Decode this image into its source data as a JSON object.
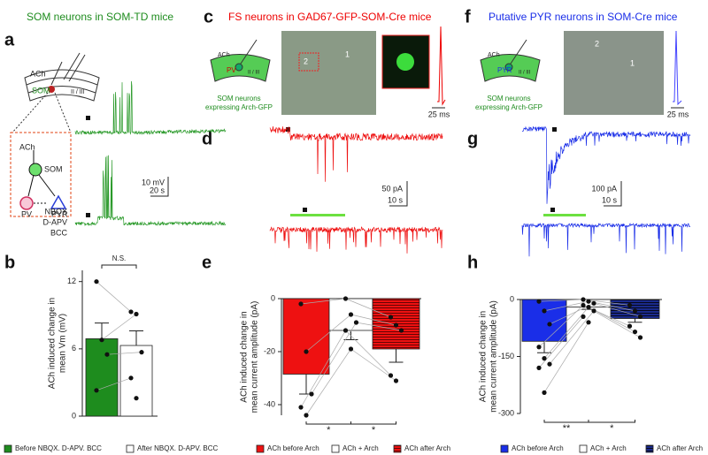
{
  "figure": {
    "panels": [
      "a",
      "b",
      "c",
      "d",
      "e",
      "f",
      "g",
      "h"
    ],
    "titles": {
      "a": "SOM neurons in SOM-TD mice",
      "c": "FS neurons in GAD67-GFP-SOM-Cre mice",
      "f": "Putative PYR neurons in SOM-Cre mice"
    },
    "schematic_a": {
      "ach": "ACh",
      "som": "SOM",
      "layer": "II / III",
      "ach2": "ACh",
      "som2": "SOM",
      "pv": "PV",
      "pyr": "PYR",
      "drugs": [
        "NBQX",
        "D-APV",
        "BCC"
      ]
    },
    "schematic_c": {
      "ach": "ACh",
      "pv": "PV",
      "layer": "II / III",
      "caption": [
        "SOM neurons",
        "expressing Arch-GFP"
      ],
      "cells": [
        "2",
        "1"
      ]
    },
    "schematic_f": {
      "ach": "ACh",
      "pyr": "PYR",
      "layer": "II / III",
      "caption": [
        "SOM neurons",
        "expressing Arch-GFP"
      ],
      "cells": [
        "2",
        "1"
      ]
    },
    "scale_bars": {
      "a": [
        "10 mV",
        "20 s"
      ],
      "c": "25 ms",
      "f": "25 ms",
      "d": [
        "50 pA",
        "10 s"
      ],
      "g": [
        "100 pA",
        "10 s"
      ]
    }
  },
  "chart_data": [
    {
      "type": "bar",
      "ylabel": [
        "ACh induced change  in",
        "mean Vm (mV)"
      ],
      "ylim": [
        0,
        13
      ],
      "yticks": [
        0,
        6,
        12
      ],
      "annotations": [
        "N.S."
      ],
      "series": [
        {
          "name": "Before NBQX. D-APV. BCC",
          "color": "#1e8c1e",
          "values": [
            6.9
          ],
          "errors": [
            1.4
          ],
          "points": [
            12,
            6.8,
            5.5,
            2.3
          ]
        },
        {
          "name": "After NBQX. D-APV. BCC",
          "color": "#ffffff",
          "values": [
            6.3
          ],
          "errors": [
            1.3
          ],
          "points": [
            9.3,
            9.1,
            5.7,
            3.4,
            1.6
          ]
        }
      ]
    },
    {
      "type": "bar",
      "ylabel": [
        "ACh induced change in",
        "mean current amplitude (pA)"
      ],
      "ylim": [
        -44,
        0
      ],
      "yticks": [
        0,
        -20,
        -40
      ],
      "annotations": [
        "*",
        "*"
      ],
      "series": [
        {
          "name": "ACh before Arch",
          "color": "#ee1111",
          "values": [
            -28.5
          ],
          "errors": [
            7.5
          ],
          "points": [
            -2,
            -20,
            -36,
            -41,
            -44
          ]
        },
        {
          "name": "ACh + Arch",
          "color": "#ffffff",
          "values": [
            -12
          ],
          "errors": [
            3.5
          ],
          "points": [
            0,
            -6,
            -9,
            -12,
            -19
          ]
        },
        {
          "name": "ACh after Arch",
          "color": "#ee1111",
          "pattern": "stripes",
          "values": [
            -19
          ],
          "errors": [
            5
          ],
          "points": [
            -7,
            -10,
            -12,
            -29,
            -31
          ]
        }
      ]
    },
    {
      "type": "bar",
      "ylabel": [
        "ACh induced change in",
        "mean current amplitude (pA)"
      ],
      "ylim": [
        -300,
        0
      ],
      "yticks": [
        0,
        -150,
        -300
      ],
      "annotations": [
        "**",
        "*"
      ],
      "series": [
        {
          "name": "ACh before Arch",
          "color": "#1a2ee8",
          "values": [
            -110
          ],
          "errors": [
            30
          ],
          "points": [
            -5,
            -30,
            -65,
            -125,
            -155,
            -170,
            -180,
            -245
          ]
        },
        {
          "name": "ACh + Arch",
          "color": "#ffffff",
          "values": [
            -20
          ],
          "errors": [
            6
          ],
          "points": [
            0,
            -5,
            -10,
            -15,
            -20,
            -30,
            -45,
            -60
          ]
        },
        {
          "name": "ACh after Arch",
          "color": "#1a2a8c",
          "pattern": "stripes",
          "values": [
            -50
          ],
          "errors": [
            10
          ],
          "points": [
            -15,
            -30,
            -45,
            -70,
            -85,
            -100
          ]
        }
      ]
    }
  ]
}
